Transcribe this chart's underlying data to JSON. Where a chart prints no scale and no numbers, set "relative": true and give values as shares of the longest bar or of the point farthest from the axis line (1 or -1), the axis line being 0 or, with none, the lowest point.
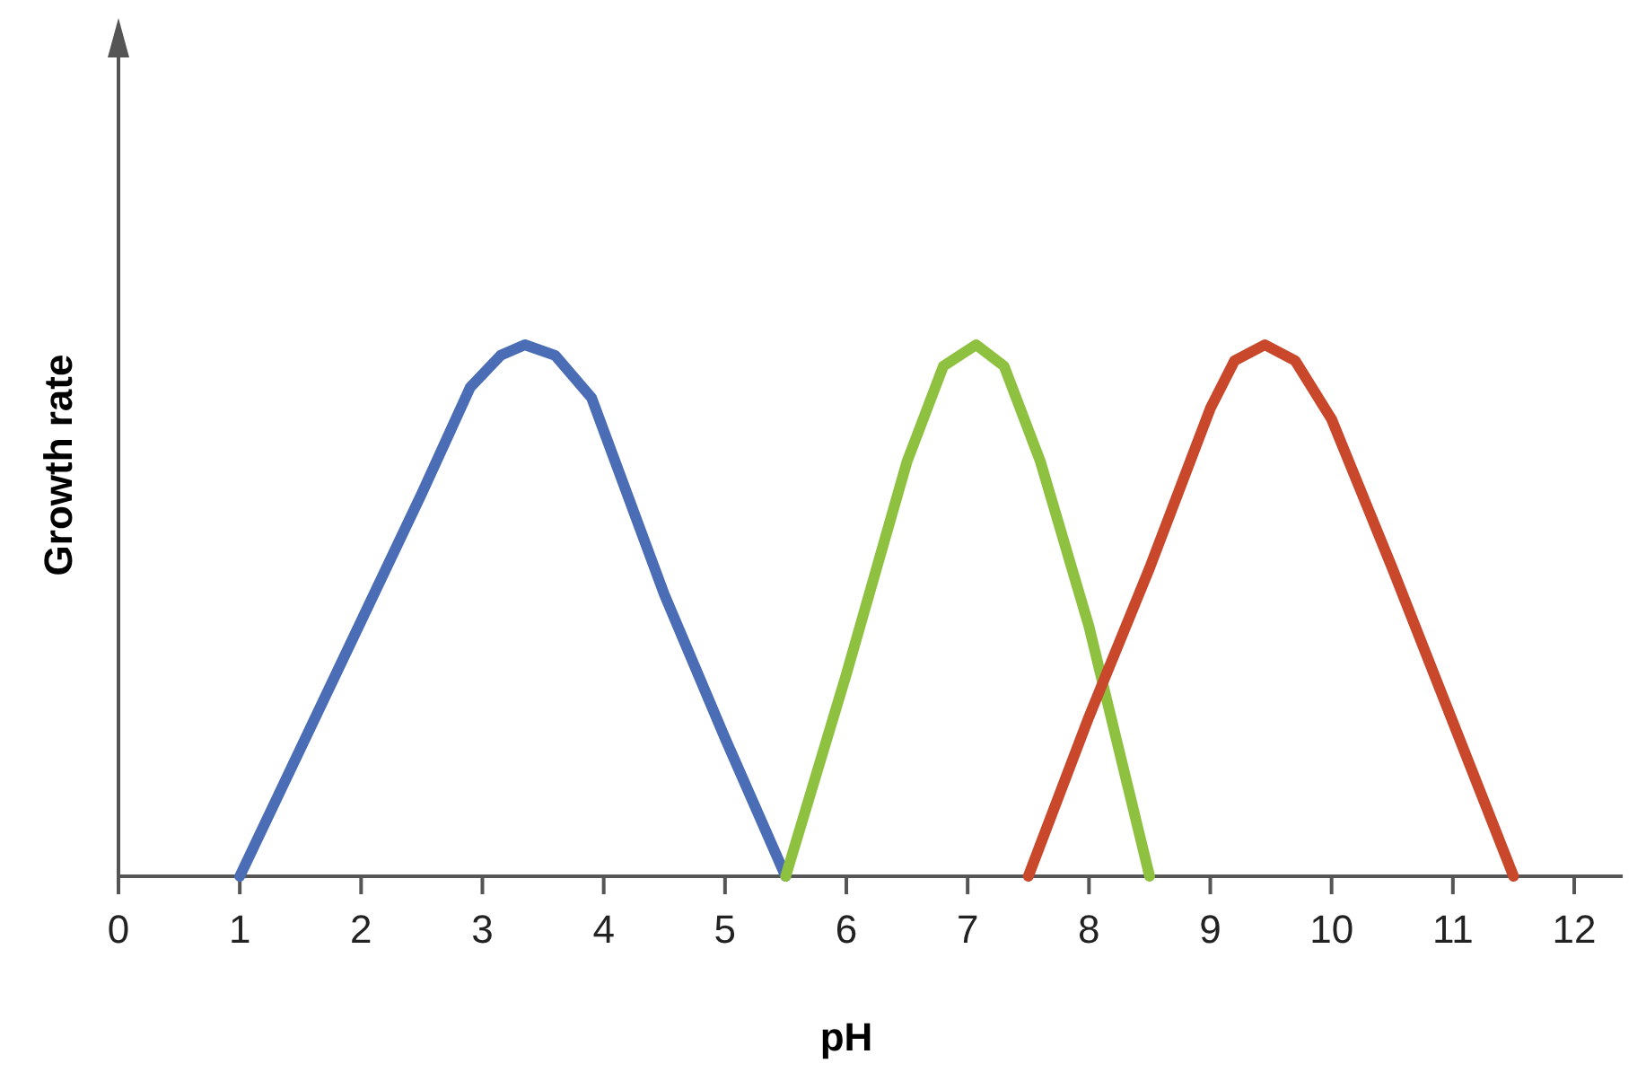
{
  "chart_data": {
    "type": "line",
    "xlabel": "pH",
    "ylabel": "Growth rate",
    "relative": true,
    "xlim": [
      0,
      12.4
    ],
    "xticks": [
      0,
      1,
      2,
      3,
      4,
      5,
      6,
      7,
      8,
      9,
      10,
      11,
      12
    ],
    "series": [
      {
        "color": "#4a6db5",
        "x": [
          1,
          2,
          2.5,
          2.9,
          3.15,
          3.35,
          3.6,
          3.9,
          4.5,
          5,
          5.5
        ],
        "values": [
          0,
          0.48,
          0.72,
          0.92,
          0.98,
          1,
          0.98,
          0.9,
          0.53,
          0.26,
          0
        ]
      },
      {
        "color": "#8dc13f",
        "x": [
          5.5,
          6,
          6.5,
          6.8,
          7.07,
          7.3,
          7.6,
          8,
          8.5
        ],
        "values": [
          0,
          0.38,
          0.78,
          0.96,
          1,
          0.96,
          0.78,
          0.47,
          0
        ]
      },
      {
        "color": "#c9472a",
        "x": [
          7.5,
          8,
          8.5,
          9,
          9.2,
          9.45,
          9.7,
          10,
          10.5,
          11,
          11.5
        ],
        "values": [
          0,
          0.3,
          0.58,
          0.88,
          0.97,
          1,
          0.97,
          0.86,
          0.58,
          0.29,
          0
        ]
      }
    ],
    "marker": "none",
    "line_style": "solid"
  }
}
